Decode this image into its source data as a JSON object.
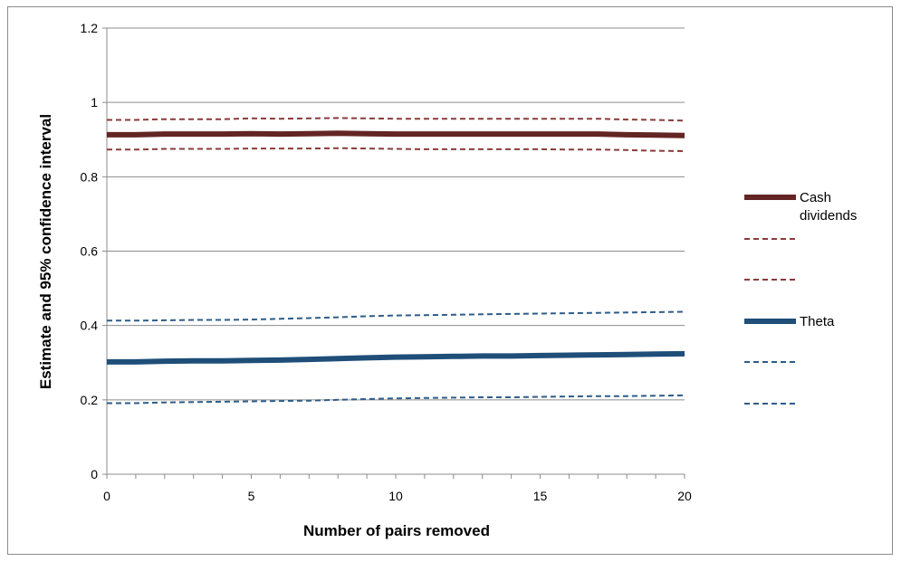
{
  "chart_data": {
    "type": "line",
    "title": "",
    "xlabel": "Number of pairs removed",
    "ylabel": "Estimate and 95% confidence interval",
    "xlim": [
      0,
      20
    ],
    "ylim": [
      0,
      1.2
    ],
    "x_ticks": [
      "0",
      "5",
      "10",
      "15",
      "20"
    ],
    "y_ticks": [
      "0",
      "0.2",
      "0.4",
      "0.6",
      "0.8",
      "1",
      "1.2"
    ],
    "grid": "horizontal",
    "legend_position": "right",
    "x": [
      0,
      1,
      2,
      3,
      4,
      5,
      6,
      7,
      8,
      9,
      10,
      11,
      12,
      13,
      14,
      15,
      16,
      17,
      18,
      19,
      20
    ],
    "series": [
      {
        "name": "Cash dividends",
        "color": "#632523",
        "style": "solid",
        "values": [
          0.913,
          0.913,
          0.915,
          0.915,
          0.915,
          0.916,
          0.915,
          0.916,
          0.917,
          0.916,
          0.915,
          0.915,
          0.915,
          0.915,
          0.915,
          0.915,
          0.915,
          0.915,
          0.913,
          0.912,
          0.911
        ]
      },
      {
        "name": "",
        "color": "#8B3A3A",
        "style": "dashed",
        "values": [
          0.953,
          0.953,
          0.955,
          0.955,
          0.955,
          0.957,
          0.956,
          0.957,
          0.958,
          0.957,
          0.956,
          0.956,
          0.956,
          0.956,
          0.956,
          0.956,
          0.956,
          0.956,
          0.954,
          0.953,
          0.951
        ]
      },
      {
        "name": "",
        "color": "#8B3A3A",
        "style": "dashed",
        "values": [
          0.873,
          0.873,
          0.875,
          0.875,
          0.875,
          0.876,
          0.876,
          0.876,
          0.877,
          0.876,
          0.875,
          0.874,
          0.874,
          0.874,
          0.874,
          0.874,
          0.873,
          0.873,
          0.872,
          0.87,
          0.869
        ]
      },
      {
        "name": "Theta",
        "color": "#1F4E79",
        "style": "solid",
        "values": [
          0.302,
          0.302,
          0.304,
          0.305,
          0.305,
          0.306,
          0.307,
          0.309,
          0.311,
          0.313,
          0.315,
          0.316,
          0.317,
          0.318,
          0.318,
          0.319,
          0.32,
          0.321,
          0.322,
          0.323,
          0.324
        ]
      },
      {
        "name": "",
        "color": "#2E5C8A",
        "style": "dashed",
        "values": [
          0.413,
          0.413,
          0.414,
          0.415,
          0.415,
          0.416,
          0.418,
          0.42,
          0.422,
          0.425,
          0.427,
          0.428,
          0.429,
          0.43,
          0.431,
          0.432,
          0.433,
          0.434,
          0.435,
          0.436,
          0.437
        ]
      },
      {
        "name": "",
        "color": "#2E5C8A",
        "style": "dashed",
        "values": [
          0.191,
          0.191,
          0.193,
          0.194,
          0.195,
          0.196,
          0.197,
          0.198,
          0.2,
          0.202,
          0.204,
          0.205,
          0.206,
          0.207,
          0.207,
          0.208,
          0.209,
          0.21,
          0.21,
          0.211,
          0.212
        ]
      }
    ]
  }
}
